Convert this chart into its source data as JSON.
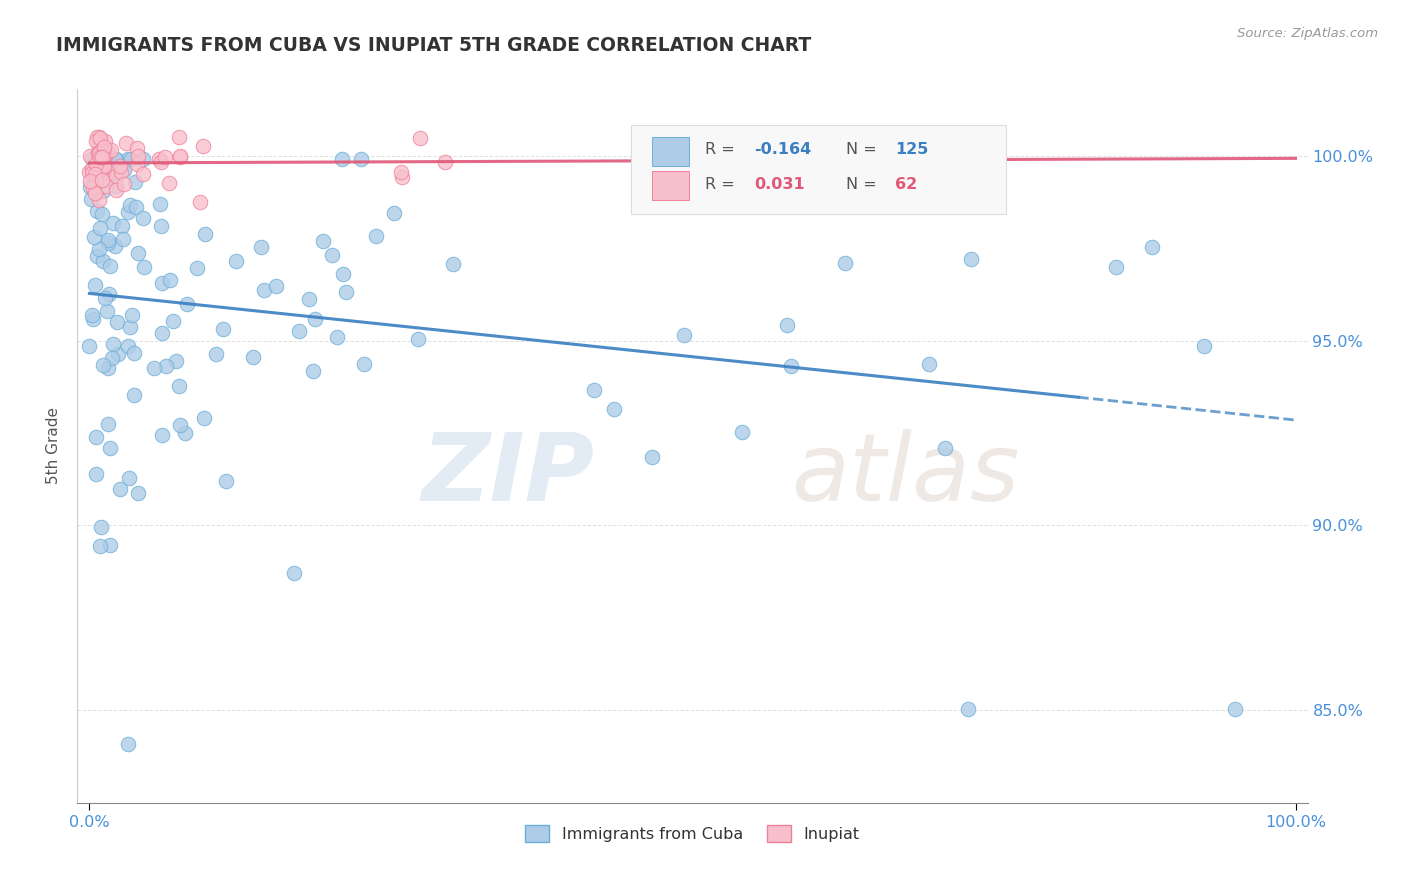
{
  "title": "IMMIGRANTS FROM CUBA VS INUPIAT 5TH GRADE CORRELATION CHART",
  "source_text": "Source: ZipAtlas.com",
  "ylabel": "5th Grade",
  "yticklabels": [
    "85.0%",
    "90.0%",
    "95.0%",
    "100.0%"
  ],
  "ylim": [
    0.825,
    1.018
  ],
  "xlim": [
    -0.01,
    1.01
  ],
  "yticks": [
    0.85,
    0.9,
    0.95,
    1.0
  ],
  "xticks": [
    0.0,
    1.0
  ],
  "xticklabels": [
    "0.0%",
    "100.0%"
  ],
  "watermark_zip": "ZIP",
  "watermark_atlas": "atlas",
  "blue_color": "#aecce8",
  "blue_edge_color": "#6aaed6",
  "pink_color": "#f8c0cc",
  "pink_edge_color": "#f08098",
  "blue_line_color": "#3a7fc1",
  "pink_line_color": "#e05878",
  "grid_color": "#cccccc",
  "axis_label_color": "#4a90d9",
  "title_color": "#333333",
  "source_color": "#999999",
  "ylabel_color": "#555555",
  "legend_bg": "#f8f8f8",
  "legend_border": "#dddddd",
  "blue_R": "-0.164",
  "blue_N": "125",
  "pink_R": "0.031",
  "pink_N": "62",
  "blue_label": "Immigrants from Cuba",
  "pink_label": "Inupiat"
}
